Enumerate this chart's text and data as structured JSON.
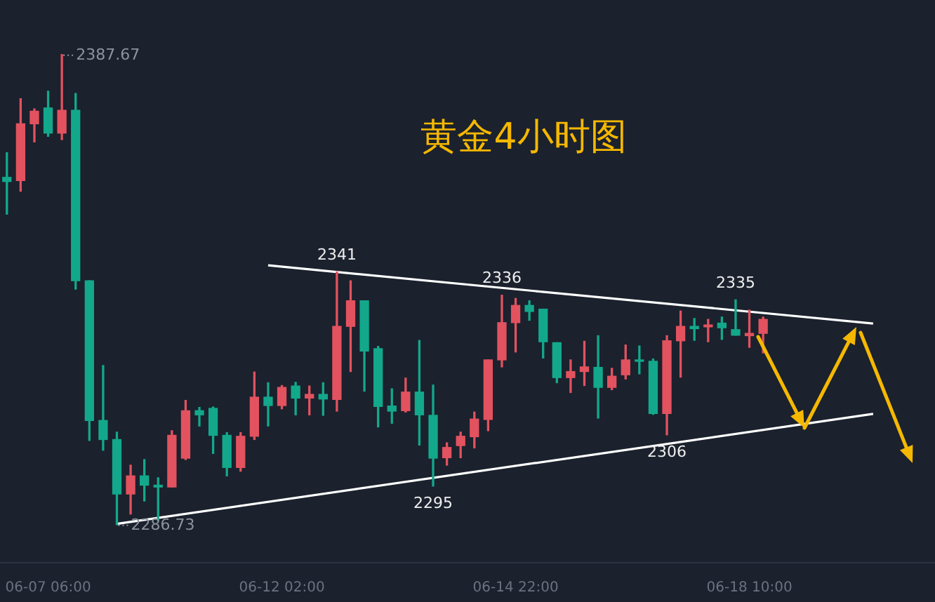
{
  "chart_data": {
    "type": "candlestick",
    "title": "黄金4小时图",
    "categories": [
      null,
      null,
      null,
      "06-07 06:00",
      null,
      null,
      null,
      null,
      null,
      null,
      null,
      null,
      null,
      null,
      null,
      null,
      null,
      null,
      null,
      null,
      "06-12 02:00",
      null,
      null,
      null,
      null,
      null,
      null,
      null,
      null,
      null,
      null,
      null,
      null,
      null,
      null,
      null,
      null,
      "06-14 22:00",
      null,
      null,
      null,
      null,
      null,
      null,
      null,
      null,
      null,
      null,
      null,
      null,
      null,
      null,
      null,
      null,
      "06-18 10:00",
      null,
      null,
      null,
      null,
      null,
      null,
      null,
      null,
      null,
      null,
      null,
      null,
      null
    ],
    "ohlc": [
      [
        2361.3,
        2366.6,
        2353.4,
        2360.4
      ],
      [
        2360.6,
        2378.2,
        2358.3,
        2372.8
      ],
      [
        2372.8,
        2376.0,
        2368.9,
        2375.5
      ],
      [
        2376.2,
        2379.8,
        2370.1,
        2370.8
      ],
      [
        2370.8,
        2387.67,
        2369.4,
        2375.7
      ],
      [
        2375.7,
        2379.3,
        2337.3,
        2339.1
      ],
      [
        2339.1,
        2339.1,
        2304.8,
        2309.1
      ],
      [
        2309.1,
        2320.9,
        2302.7,
        2305.0
      ],
      [
        2305.0,
        2306.6,
        2286.73,
        2293.3
      ],
      [
        2293.3,
        2299.5,
        2289.0,
        2297.2
      ],
      [
        2297.2,
        2300.7,
        2291.8,
        2295.2
      ],
      [
        2295.2,
        2296.8,
        2287.6,
        2294.8
      ],
      [
        2294.8,
        2306.9,
        2294.8,
        2305.9
      ],
      [
        2301.0,
        2313.4,
        2300.7,
        2311.2
      ],
      [
        2311.2,
        2311.9,
        2307.9,
        2310.3
      ],
      [
        2311.7,
        2312.0,
        2302.0,
        2305.9
      ],
      [
        2305.9,
        2306.5,
        2297.2,
        2299.0
      ],
      [
        2299.0,
        2306.5,
        2298.2,
        2305.7
      ],
      [
        2305.7,
        2319.5,
        2305.0,
        2314.1
      ],
      [
        2314.1,
        2317.2,
        2307.9,
        2312.3
      ],
      [
        2312.3,
        2316.6,
        2311.6,
        2316.2
      ],
      [
        2316.5,
        2317.3,
        2310.3,
        2313.9
      ],
      [
        2313.9,
        2316.5,
        2310.3,
        2314.7
      ],
      [
        2314.7,
        2317.2,
        2310.2,
        2313.7
      ],
      [
        2313.6,
        2341,
        2311.1,
        2329.3
      ],
      [
        2329.3,
        2339.1,
        2319.6,
        2334.8
      ],
      [
        2334.8,
        2334.8,
        2315.4,
        2324.0
      ],
      [
        2324.5,
        2325.0,
        2307.7,
        2312.1
      ],
      [
        2312.2,
        2315.9,
        2308.5,
        2311.1
      ],
      [
        2311.2,
        2318.2,
        2310.9,
        2315.2
      ],
      [
        2315.2,
        2326.3,
        2303.8,
        2310.3
      ],
      [
        2310.2,
        2316.7,
        2295,
        2301.0
      ],
      [
        2301.1,
        2304.3,
        2299.5,
        2303.3
      ],
      [
        2303.7,
        2306.6,
        2301.1,
        2305.7
      ],
      [
        2305.6,
        2310.9,
        2303.2,
        2309.4
      ],
      [
        2309.3,
        2322.1,
        2306.9,
        2322.1
      ],
      [
        2322.1,
        2336,
        2320.6,
        2330.1
      ],
      [
        2330.1,
        2335.3,
        2323.8,
        2333.8
      ],
      [
        2333.8,
        2334.8,
        2330.6,
        2332.5
      ],
      [
        2333.0,
        2333.0,
        2322.5,
        2326.0
      ],
      [
        2325.8,
        2325.8,
        2317.2,
        2318.3
      ],
      [
        2318.3,
        2322.1,
        2315.1,
        2319.6
      ],
      [
        2319.6,
        2326.1,
        2316.6,
        2320.6
      ],
      [
        2320.5,
        2327.3,
        2309.6,
        2316.2
      ],
      [
        2316.2,
        2320.3,
        2315.7,
        2318.6
      ],
      [
        2318.9,
        2325.3,
        2318.0,
        2322.1
      ],
      [
        2322.1,
        2325.1,
        2319.1,
        2321.8
      ],
      [
        2321.8,
        2322.3,
        2310.4,
        2310.6
      ],
      [
        2310.6,
        2327.3,
        2306,
        2326.2
      ],
      [
        2326.2,
        2332.6,
        2318.4,
        2329.3
      ],
      [
        2329.3,
        2331.0,
        2326.3,
        2328.8
      ],
      [
        2329.2,
        2330.8,
        2326.0,
        2329.6
      ],
      [
        2330.0,
        2331.3,
        2326.5,
        2329.0
      ],
      [
        2328.6,
        2335,
        2327.4,
        2327.4
      ],
      [
        2327.3,
        2332.8,
        2324.8,
        2327.8
      ],
      [
        2327.8,
        2331.3,
        2323.6,
        2330.8
      ],
      null,
      null,
      null,
      null,
      null,
      null,
      null,
      null,
      null,
      null,
      null,
      null
    ],
    "colors": [
      "#13a88b",
      "#e2525f",
      "#e2525f",
      "#13a88b",
      "#e2525f",
      "#13a88b",
      "#13a88b",
      "#13a88b",
      "#13a88b",
      "#e2525f",
      "#13a88b",
      "#13a88b",
      "#e2525f",
      "#e2525f",
      "#13a88b",
      "#13a88b",
      "#13a88b",
      "#e2525f",
      "#e2525f",
      "#13a88b",
      "#e2525f",
      "#13a88b",
      "#e2525f",
      "#13a88b",
      "#e2525f",
      "#e2525f",
      "#13a88b",
      "#13a88b",
      "#13a88b",
      "#e2525f",
      "#13a88b",
      "#13a88b",
      "#e2525f",
      "#e2525f",
      "#e2525f",
      "#e2525f",
      "#e2525f",
      "#e2525f",
      "#13a88b",
      "#13a88b",
      "#13a88b",
      "#e2525f",
      "#e2525f",
      "#13a88b",
      "#e2525f",
      "#e2525f",
      "#13a88b",
      "#13a88b",
      "#e2525f",
      "#e2525f",
      "#13a88b",
      "#e2525f",
      "#13a88b",
      "#13a88b",
      "#e2525f",
      "#e2525f",
      null,
      null,
      null,
      null,
      null,
      null,
      null,
      null,
      null,
      null,
      null,
      null
    ],
    "series": [
      {
        "type": "line",
        "color": "#ffffff",
        "values": [
          null,
          null,
          null,
          null,
          null,
          null,
          null,
          null,
          null,
          null,
          null,
          null,
          null,
          null,
          null,
          null,
          null,
          null,
          null,
          2342.4,
          null,
          null,
          null,
          null,
          null,
          null,
          null,
          null,
          null,
          null,
          null,
          null,
          null,
          null,
          null,
          null,
          null,
          null,
          null,
          null,
          null,
          null,
          null,
          null,
          null,
          null,
          null,
          null,
          null,
          null,
          null,
          null,
          null,
          null,
          null,
          null,
          null,
          null,
          null,
          null,
          null,
          null,
          null,
          2329.9,
          null,
          null,
          null,
          null
        ]
      },
      {
        "type": "line",
        "color": "#ffffff",
        "values": [
          null,
          null,
          null,
          null,
          null,
          null,
          null,
          null,
          2286.9,
          null,
          null,
          null,
          null,
          null,
          null,
          null,
          null,
          null,
          null,
          null,
          null,
          null,
          null,
          null,
          null,
          null,
          null,
          null,
          null,
          null,
          null,
          null,
          null,
          null,
          null,
          null,
          null,
          null,
          null,
          null,
          null,
          null,
          null,
          null,
          null,
          null,
          null,
          null,
          null,
          null,
          null,
          null,
          null,
          null,
          null,
          null,
          null,
          null,
          null,
          null,
          null,
          null,
          null,
          2310.5,
          null,
          null,
          null,
          null
        ]
      }
    ],
    "annotations": [
      "2387.67",
      "2286.73",
      {
        "text": "2341",
        "y": 2341
      },
      {
        "text": "2336",
        "y": 2336
      },
      {
        "text": "2335",
        "y": 2335
      },
      {
        "text": "2295",
        "y": 2295
      },
      {
        "text": "2306",
        "y": 2306
      }
    ]
  }
}
